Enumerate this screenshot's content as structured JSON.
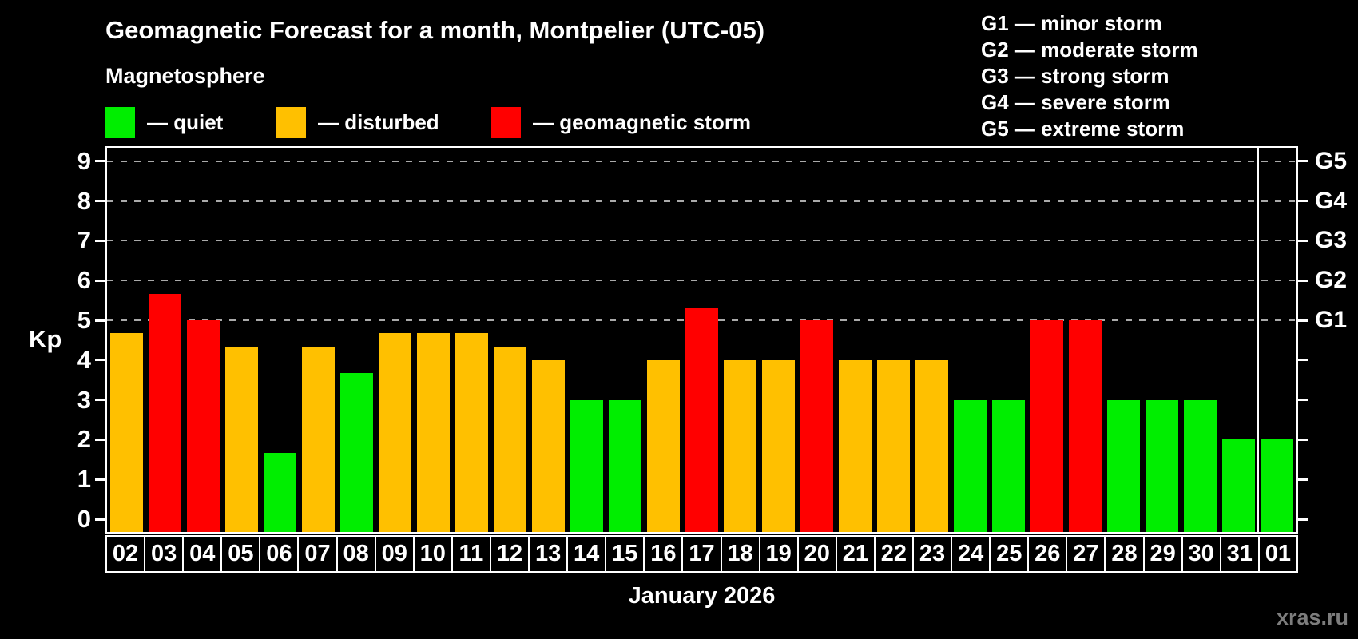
{
  "chart_data": {
    "type": "bar",
    "title": "Geomagnetic Forecast for a month, Montpelier (UTC-05)",
    "xlabel": "January 2026",
    "ylabel": "Kp",
    "ylim": [
      0,
      9.4
    ],
    "y_ticks": [
      0,
      1,
      2,
      3,
      4,
      5,
      6,
      7,
      8,
      9
    ],
    "grid_levels": [
      5,
      6,
      7,
      8,
      9
    ],
    "grid_on": true,
    "legend_position": "top-left",
    "right_axis_labels": [
      {
        "level": 5,
        "label": "G1"
      },
      {
        "level": 6,
        "label": "G2"
      },
      {
        "level": 7,
        "label": "G3"
      },
      {
        "level": 8,
        "label": "G4"
      },
      {
        "level": 9,
        "label": "G5"
      }
    ],
    "month_separator_after": "31",
    "status_colors": {
      "quiet": "#00ee00",
      "disturbed": "#ffc000",
      "storm": "#ff0000"
    },
    "days": [
      {
        "date": "02",
        "kp": 4.67,
        "status": "disturbed"
      },
      {
        "date": "03",
        "kp": 5.67,
        "status": "storm"
      },
      {
        "date": "04",
        "kp": 5.0,
        "status": "storm"
      },
      {
        "date": "05",
        "kp": 4.33,
        "status": "disturbed"
      },
      {
        "date": "06",
        "kp": 1.67,
        "status": "quiet"
      },
      {
        "date": "07",
        "kp": 4.33,
        "status": "disturbed"
      },
      {
        "date": "08",
        "kp": 3.67,
        "status": "quiet"
      },
      {
        "date": "09",
        "kp": 4.67,
        "status": "disturbed"
      },
      {
        "date": "10",
        "kp": 4.67,
        "status": "disturbed"
      },
      {
        "date": "11",
        "kp": 4.67,
        "status": "disturbed"
      },
      {
        "date": "12",
        "kp": 4.33,
        "status": "disturbed"
      },
      {
        "date": "13",
        "kp": 4.0,
        "status": "disturbed"
      },
      {
        "date": "14",
        "kp": 3.0,
        "status": "quiet"
      },
      {
        "date": "15",
        "kp": 3.0,
        "status": "quiet"
      },
      {
        "date": "16",
        "kp": 4.0,
        "status": "disturbed"
      },
      {
        "date": "17",
        "kp": 5.33,
        "status": "storm"
      },
      {
        "date": "18",
        "kp": 4.0,
        "status": "disturbed"
      },
      {
        "date": "19",
        "kp": 4.0,
        "status": "disturbed"
      },
      {
        "date": "20",
        "kp": 5.0,
        "status": "storm"
      },
      {
        "date": "21",
        "kp": 4.0,
        "status": "disturbed"
      },
      {
        "date": "22",
        "kp": 4.0,
        "status": "disturbed"
      },
      {
        "date": "23",
        "kp": 4.0,
        "status": "disturbed"
      },
      {
        "date": "24",
        "kp": 3.0,
        "status": "quiet"
      },
      {
        "date": "25",
        "kp": 3.0,
        "status": "quiet"
      },
      {
        "date": "26",
        "kp": 5.0,
        "status": "storm"
      },
      {
        "date": "27",
        "kp": 5.0,
        "status": "storm"
      },
      {
        "date": "28",
        "kp": 3.0,
        "status": "quiet"
      },
      {
        "date": "29",
        "kp": 3.0,
        "status": "quiet"
      },
      {
        "date": "30",
        "kp": 3.0,
        "status": "quiet"
      },
      {
        "date": "31",
        "kp": 2.0,
        "status": "quiet"
      },
      {
        "date": "01",
        "kp": 2.0,
        "status": "quiet"
      }
    ]
  },
  "header": {
    "subtitle": "Magnetosphere"
  },
  "legend": {
    "items": [
      {
        "status": "quiet",
        "color": "#00ee00",
        "label": "— quiet"
      },
      {
        "status": "disturbed",
        "color": "#ffc000",
        "label": "— disturbed"
      },
      {
        "status": "storm",
        "color": "#ff0000",
        "label": "— geomagnetic storm"
      }
    ]
  },
  "storm_scale": {
    "items": [
      "G1 — minor storm",
      "G2 — moderate storm",
      "G3 — strong storm",
      "G4 — severe storm",
      "G5 — extreme storm"
    ]
  },
  "footer": {
    "watermark": "xras.ru"
  }
}
